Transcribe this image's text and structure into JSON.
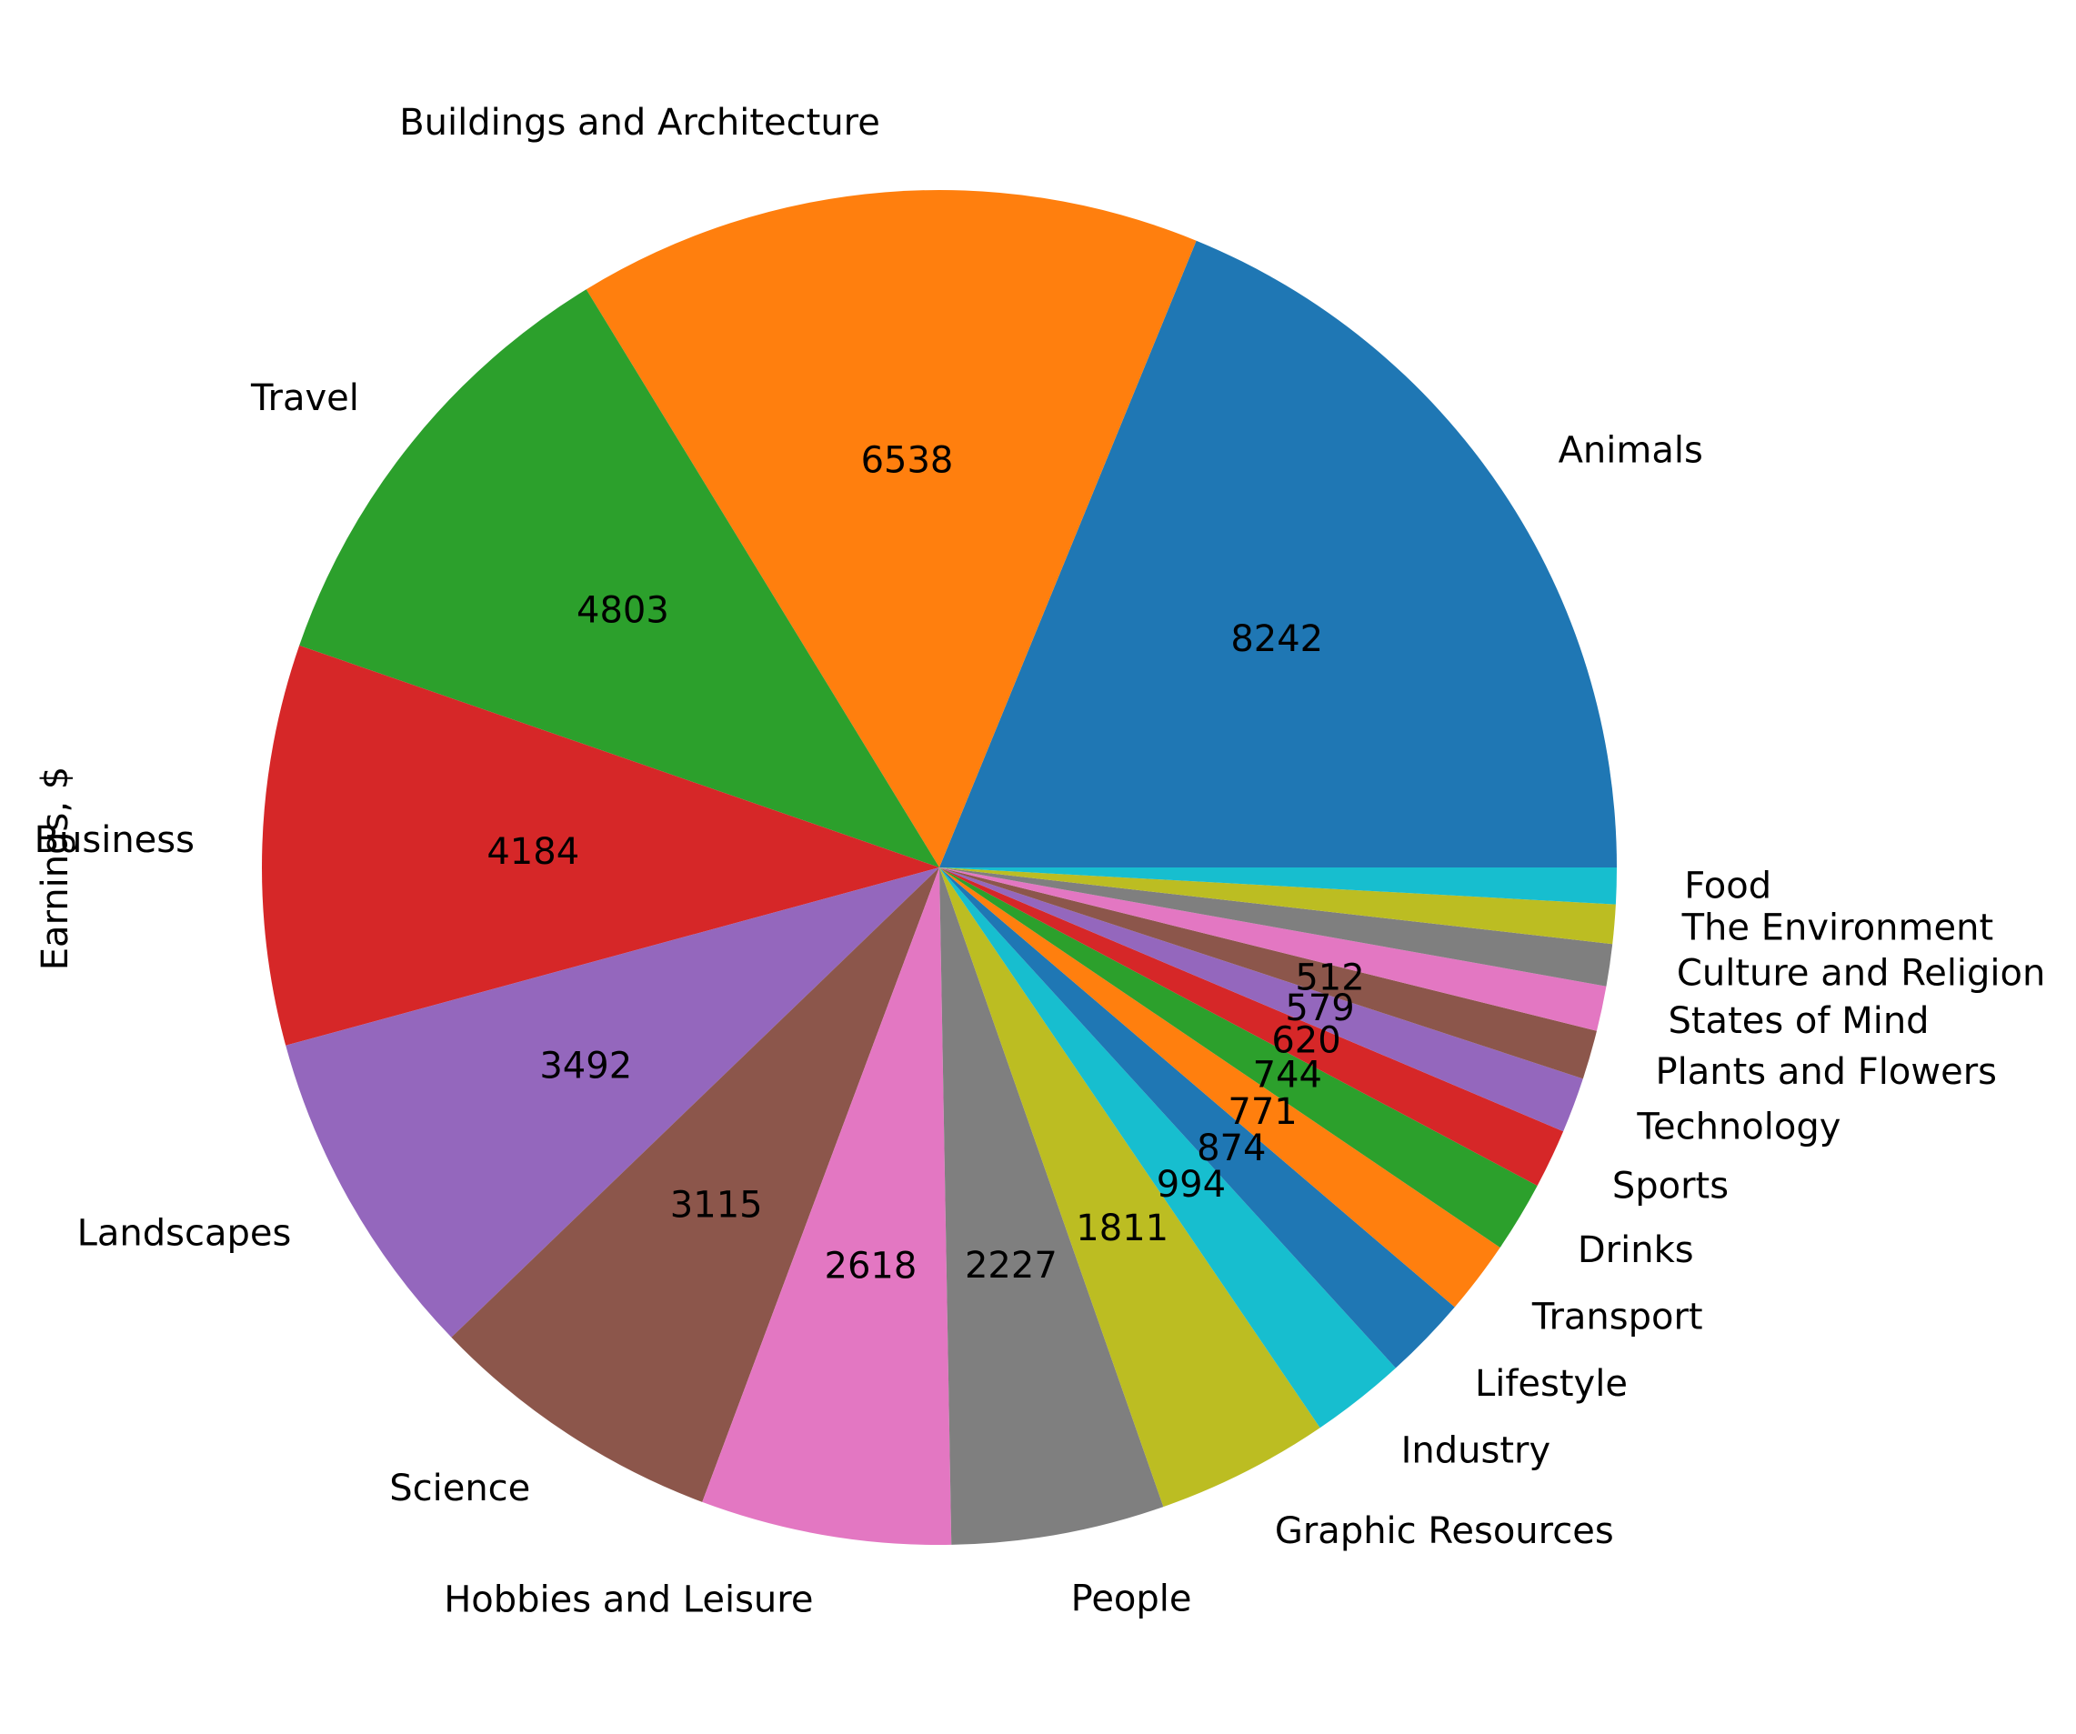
{
  "chart_data": {
    "type": "pie",
    "ylabel": "Earnings, $",
    "title": "",
    "categories": [
      "Animals",
      "Buildings and Architecture",
      "Travel",
      "Business",
      "Landscapes",
      "Science",
      "Hobbies and Leisure",
      "People",
      "Graphic Resources",
      "Industry",
      "Lifestyle",
      "Transport",
      "Drinks",
      "Sports",
      "Technology",
      "Plants and Flowers",
      "States of Mind",
      "Culture and Religion",
      "The Environment",
      "Food"
    ],
    "values": [
      8242,
      6538,
      4803,
      4184,
      3492,
      3115,
      2618,
      2227,
      1811,
      994,
      874,
      771,
      744,
      620,
      579,
      512,
      470,
      440,
      410,
      380
    ],
    "value_labels": [
      "8242",
      "6538",
      "4803",
      "4184",
      "3492",
      "3115",
      "2618",
      "2227",
      "1811",
      "994",
      "874",
      "771",
      "744",
      "620",
      "579",
      "512",
      "",
      "",
      "",
      ""
    ],
    "colors": [
      "#1f77b4",
      "#ff7f0e",
      "#2ca02c",
      "#d62728",
      "#9467bd",
      "#8c564b",
      "#e377c2",
      "#7f7f7f",
      "#bcbd22",
      "#17becf",
      "#1f77b4",
      "#ff7f0e",
      "#2ca02c",
      "#d62728",
      "#9467bd",
      "#8c564b",
      "#e377c2",
      "#7f7f7f",
      "#bcbd22",
      "#17becf"
    ],
    "start_angle": "counterclockwise from 3 o'clock",
    "direction": "counterclockwise",
    "legend": "none"
  }
}
